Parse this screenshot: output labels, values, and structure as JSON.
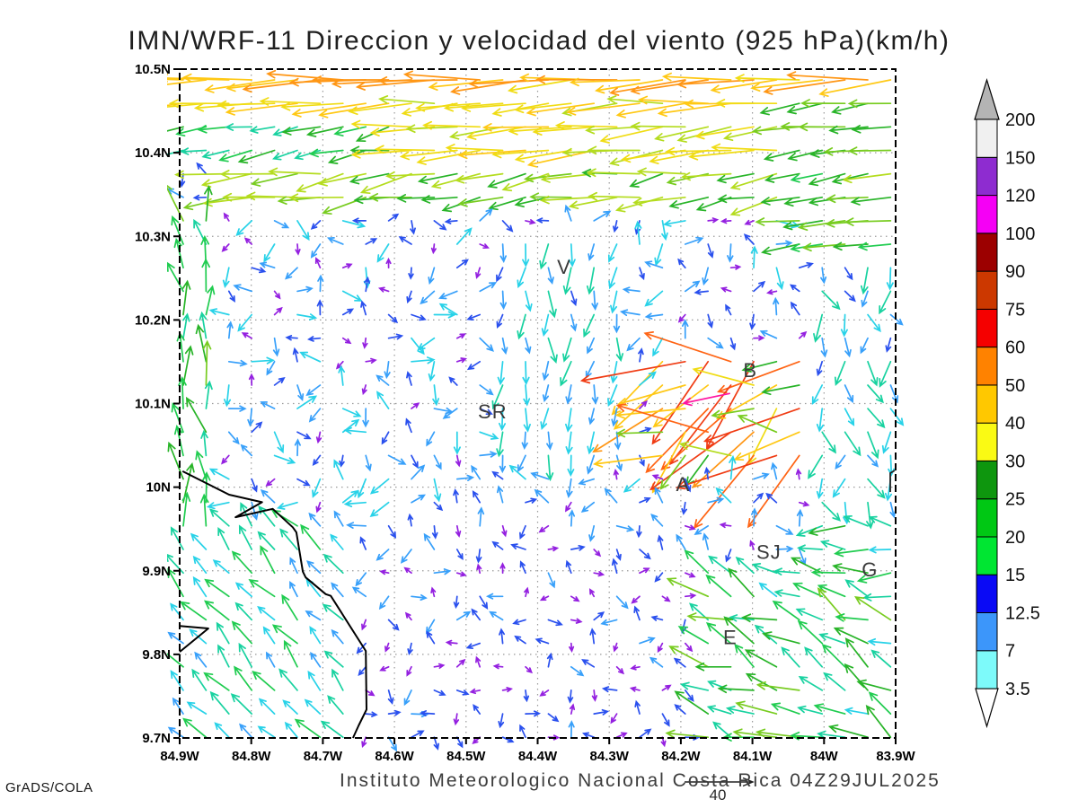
{
  "title": "IMN/WRF-11 Direccion y velocidad del viento (925 hPa)(km/h)",
  "footer": {
    "credit": "GrADS/COLA",
    "caption": "Instituto Meteorologico Nacional Costa Rica 04Z29JUL2025",
    "reference_arrow_label": "40"
  },
  "chart_data": {
    "type": "vector_field",
    "title": "IMN/WRF-11 Direccion y velocidad del viento (925 hPa)(km/h)",
    "units": "km/h",
    "level": "925 hPa",
    "x_ticks": [
      "84.9W",
      "84.8W",
      "84.7W",
      "84.6W",
      "84.5W",
      "84.4W",
      "84.3W",
      "84.2W",
      "84.1W",
      "84W",
      "83.9W"
    ],
    "y_ticks": [
      "10.5N",
      "10.4N",
      "10.3N",
      "10.2N",
      "10.1N",
      "10N",
      "9.9N",
      "9.8N",
      "9.7N"
    ],
    "lon_range": [
      -84.9,
      -83.9
    ],
    "lat_range": [
      9.7,
      10.5
    ],
    "grid": "dotted",
    "colorbar": {
      "levels": [
        3.5,
        7,
        12.5,
        15,
        20,
        25,
        30,
        40,
        50,
        60,
        75,
        90,
        100,
        120,
        150,
        200
      ],
      "colors": [
        "#7dfafa",
        "#3c96fa",
        "#0a0af5",
        "#00e632",
        "#00c814",
        "#0e960e",
        "#fafa14",
        "#ffc800",
        "#ff8200",
        "#f50000",
        "#cc3800",
        "#9c0000",
        "#f500f5",
        "#8e2cd0",
        "#f0f0f0"
      ],
      "above_color": "#b4b4b4",
      "below_color": "#ffffff"
    },
    "arrow_palette": [
      [
        5,
        "#9420e0"
      ],
      [
        8,
        "#2a50ee"
      ],
      [
        11,
        "#38a0fa"
      ],
      [
        14,
        "#28d2e8"
      ],
      [
        18,
        "#18d2a0"
      ],
      [
        22,
        "#20cc50"
      ],
      [
        27,
        "#28b428"
      ],
      [
        32,
        "#78cc20"
      ],
      [
        38,
        "#b4dc1e"
      ],
      [
        45,
        "#f0dc14"
      ],
      [
        52,
        "#ffc814"
      ],
      [
        60,
        "#ff9614"
      ],
      [
        70,
        "#ff6414"
      ],
      [
        90,
        "#f03c14"
      ],
      [
        110,
        "#d42000"
      ],
      [
        9999,
        "#ff14a0"
      ]
    ],
    "city_labels": [
      {
        "text": "V",
        "lon": -84.363,
        "lat": 10.264
      },
      {
        "text": "B",
        "lon": -84.103,
        "lat": 10.14
      },
      {
        "text": "SR",
        "lon": -84.463,
        "lat": 10.091
      },
      {
        "text": "A",
        "lon": -84.197,
        "lat": 10.004
      },
      {
        "text": "SJ",
        "lon": -84.077,
        "lat": 9.923
      },
      {
        "text": "G",
        "lon": -83.936,
        "lat": 9.902
      },
      {
        "text": "E",
        "lon": -84.131,
        "lat": 9.821
      }
    ],
    "coastline": [
      [
        [
          -84.896,
          10.019
        ],
        [
          -84.831,
          9.991
        ],
        [
          -84.785,
          9.982
        ],
        [
          -84.822,
          9.964
        ],
        [
          -84.77,
          9.974
        ],
        [
          -84.742,
          9.952
        ],
        [
          -84.737,
          9.946
        ],
        [
          -84.728,
          9.899
        ],
        [
          -84.724,
          9.892
        ],
        [
          -84.696,
          9.872
        ],
        [
          -84.689,
          9.87
        ],
        [
          -84.64,
          9.804
        ],
        [
          -84.639,
          9.734
        ],
        [
          -84.65,
          9.715
        ],
        [
          -84.658,
          9.7
        ]
      ],
      [
        [
          -84.9,
          9.834
        ],
        [
          -84.86,
          9.831
        ],
        [
          -84.9,
          9.803
        ]
      ]
    ],
    "flow_regions": [
      {
        "name": "b-gust",
        "lat": [
          10.03,
          10.17
        ],
        "lon": [
          -84.23,
          -84.03
        ],
        "dir": 250,
        "spread": 45,
        "speed": [
          22,
          78
        ]
      },
      {
        "name": "top-right-green",
        "lat": [
          10.28,
          10.47
        ],
        "lon": [
          -84.05,
          -83.888
        ],
        "dir": 263,
        "spread": 9,
        "speed": [
          20,
          33
        ]
      },
      {
        "name": "jet-row-1",
        "lat": [
          10.468,
          10.51
        ],
        "lon": [
          -84.91,
          -83.888
        ],
        "dir": 266,
        "spread": 9,
        "speed": [
          44,
          58
        ]
      },
      {
        "name": "jet-row-2",
        "lat": [
          10.437,
          10.468
        ],
        "lon": [
          -84.91,
          -83.888
        ],
        "dir": 267,
        "spread": 8,
        "speed": [
          36,
          52
        ]
      },
      {
        "name": "band-3-west",
        "lat": [
          10.4,
          10.437
        ],
        "lon": [
          -84.91,
          -84.58
        ],
        "dir": 262,
        "spread": 16,
        "speed": [
          14,
          26
        ]
      },
      {
        "name": "band-3-east",
        "lat": [
          10.4,
          10.437
        ],
        "lon": [
          -84.58,
          -83.888
        ],
        "dir": 264,
        "spread": 9,
        "speed": [
          34,
          47
        ]
      },
      {
        "name": "band-4-west",
        "lat": [
          10.375,
          10.4
        ],
        "lon": [
          -84.91,
          -84.58
        ],
        "dir": 300,
        "spread": 55,
        "speed": [
          5,
          16
        ]
      },
      {
        "name": "band-4-east",
        "lat": [
          10.375,
          10.4
        ],
        "lon": [
          -84.58,
          -83.888
        ],
        "dir": 262,
        "spread": 10,
        "speed": [
          30,
          44
        ]
      },
      {
        "name": "band-5",
        "lat": [
          10.345,
          10.375
        ],
        "lon": [
          -84.85,
          -84.04
        ],
        "dir": 261,
        "spread": 13,
        "speed": [
          22,
          37
        ]
      },
      {
        "name": "left-coast-north",
        "lat": [
          9.95,
          10.345
        ],
        "lon": [
          -84.91,
          -84.835
        ],
        "dir": 352,
        "spread": 22,
        "speed": [
          14,
          30
        ]
      },
      {
        "name": "south-flow-column",
        "lat": [
          10.02,
          10.3
        ],
        "lon": [
          -84.46,
          -84.28
        ],
        "dir": 184,
        "spread": 22,
        "speed": [
          7,
          17
        ]
      },
      {
        "name": "east-mid",
        "lat": [
          9.98,
          10.28
        ],
        "lon": [
          -84.03,
          -83.888
        ],
        "dir": 175,
        "spread": 45,
        "speed": [
          7,
          18
        ]
      },
      {
        "name": "central-valley-weak",
        "lat": [
          9.97,
          10.345
        ],
        "lon": [
          -84.835,
          -84.03
        ],
        "dir": 205,
        "spread": 165,
        "speed": [
          3.5,
          14
        ]
      },
      {
        "name": "gulf-ocean-nw",
        "lat": [
          9.69,
          9.97
        ],
        "lon": [
          -84.91,
          -84.66
        ],
        "dir": 318,
        "spread": 17,
        "speed": [
          9,
          21
        ]
      },
      {
        "name": "g-east",
        "lat": [
          9.88,
          9.99
        ],
        "lon": [
          -84.02,
          -83.888
        ],
        "dir": 275,
        "spread": 30,
        "speed": [
          12,
          26
        ]
      },
      {
        "name": "lower-right",
        "lat": [
          9.69,
          9.9
        ],
        "lon": [
          -84.17,
          -83.888
        ],
        "dir": 295,
        "spread": 28,
        "speed": [
          13,
          30
        ]
      },
      {
        "name": "sj-valley-weak",
        "lat": [
          9.9,
          9.97
        ],
        "lon": [
          -84.66,
          -84.02
        ],
        "dir": 220,
        "spread": 150,
        "speed": [
          3.5,
          11
        ]
      },
      {
        "name": "bottom-center-weak",
        "lat": [
          9.69,
          9.9
        ],
        "lon": [
          -84.66,
          -84.17
        ],
        "dir": 210,
        "spread": 165,
        "speed": [
          3,
          9
        ]
      },
      {
        "name": "default",
        "lat": [
          9.0,
          11.0
        ],
        "lon": [
          -86.0,
          -83.0
        ],
        "dir": 240,
        "spread": 90,
        "speed": [
          4,
          12
        ]
      }
    ],
    "extra_arrows": [
      {
        "lon": -84.132,
        "lat": 10.112,
        "dir": 258,
        "speed": 115,
        "len": 52
      }
    ],
    "reference_arrow": {
      "label": "40",
      "speed": 40
    }
  }
}
